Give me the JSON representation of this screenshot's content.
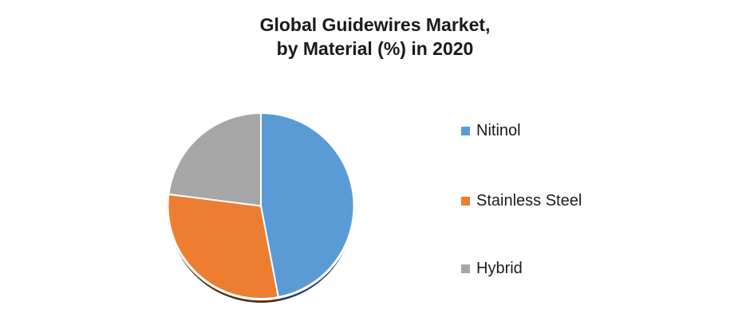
{
  "title": {
    "line1": "Global Guidewires Market,",
    "line2": "by Material (%) in 2020"
  },
  "chart_data": {
    "type": "pie",
    "title": "Global Guidewires Market, by Material (%) in 2020",
    "categories": [
      "Nitinol",
      "Stainless Steel",
      "Hybrid"
    ],
    "values": [
      47,
      30,
      23
    ],
    "unit": "%",
    "colors": [
      "#5B9BD5",
      "#ED7D31",
      "#A6A6A6"
    ],
    "shadow_colors": [
      "#1E3A5F",
      "#57290B",
      "#6E6E6E"
    ],
    "slice_border_color": "#FFFFFF",
    "start_angle_deg": 0,
    "direction": "clockwise",
    "legend_position": "right",
    "data_labels_visible": false
  },
  "legend": {
    "items": [
      {
        "label": "Nitinol",
        "color": "#5B9BD5"
      },
      {
        "label": "Stainless Steel",
        "color": "#ED7D31"
      },
      {
        "label": "Hybrid",
        "color": "#A6A6A6"
      }
    ]
  }
}
